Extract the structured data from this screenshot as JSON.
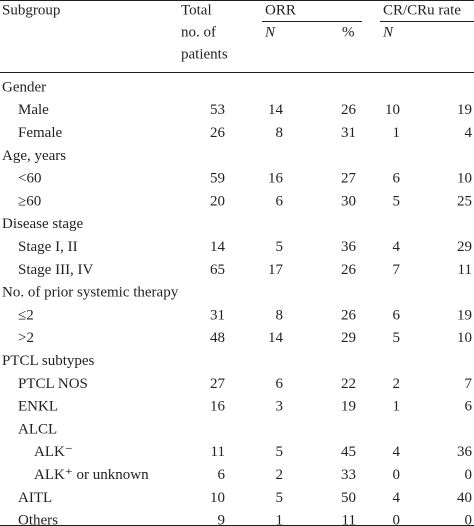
{
  "header": {
    "subgroup": "Subgroup",
    "total": [
      "Total",
      "no. of",
      "patients"
    ],
    "orr": "ORR",
    "cr": "CR/CRu rate",
    "orr_n": "N",
    "orr_pct": "%",
    "cr_n": "N"
  },
  "groups": [
    {
      "label": "Gender",
      "rows": [
        {
          "label": "Male",
          "values": [
            53,
            14,
            26,
            10,
            19
          ]
        },
        {
          "label": "Female",
          "values": [
            26,
            8,
            31,
            1,
            4
          ]
        }
      ]
    },
    {
      "label": "Age, years",
      "rows": [
        {
          "label": "<60",
          "values": [
            59,
            16,
            27,
            6,
            10
          ]
        },
        {
          "label": "≥60",
          "values": [
            20,
            6,
            30,
            5,
            25
          ]
        }
      ]
    },
    {
      "label": "Disease stage",
      "rows": [
        {
          "label": "Stage I, II",
          "values": [
            14,
            5,
            36,
            4,
            29
          ]
        },
        {
          "label": "Stage III, IV",
          "values": [
            65,
            17,
            26,
            7,
            11
          ]
        }
      ]
    },
    {
      "label": "No. of prior systemic therapy",
      "rows": [
        {
          "label": "≤2",
          "values": [
            31,
            8,
            26,
            6,
            19
          ]
        },
        {
          "label": ">2",
          "values": [
            48,
            14,
            29,
            5,
            10
          ]
        }
      ]
    },
    {
      "label": "PTCL subtypes",
      "rows": [
        {
          "label": "PTCL NOS",
          "values": [
            27,
            6,
            22,
            2,
            7
          ]
        },
        {
          "label": "ENKL",
          "values": [
            16,
            3,
            19,
            1,
            6
          ]
        },
        {
          "label": "ALCL",
          "rows": [
            {
              "label": "ALK⁻",
              "values": [
                11,
                5,
                45,
                4,
                36
              ]
            },
            {
              "label": "ALK⁺ or unknown",
              "values": [
                6,
                2,
                33,
                0,
                0
              ]
            }
          ]
        },
        {
          "label": "AITL",
          "values": [
            10,
            5,
            50,
            4,
            40
          ]
        },
        {
          "label": "Others",
          "values": [
            9,
            1,
            11,
            0,
            0
          ]
        }
      ]
    }
  ]
}
